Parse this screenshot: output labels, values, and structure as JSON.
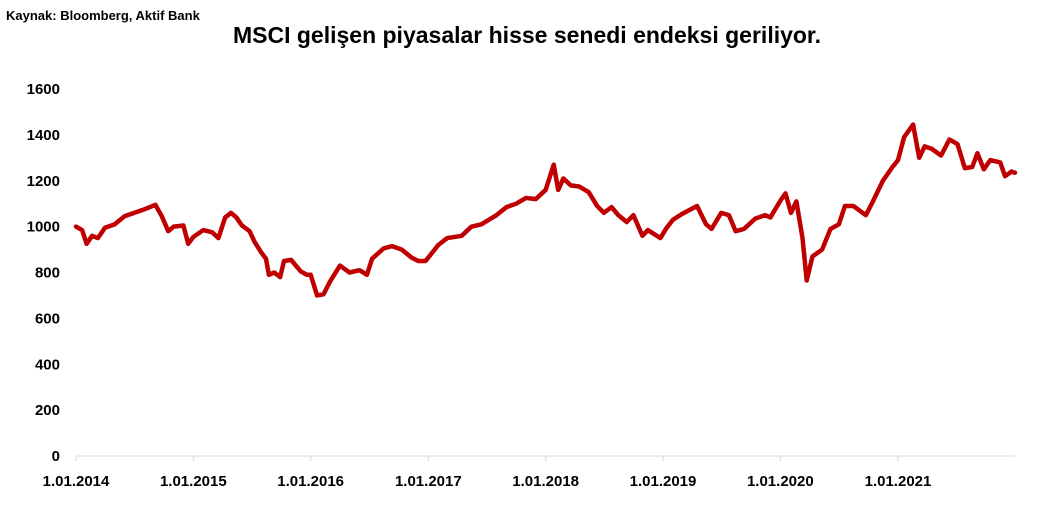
{
  "source": "Kaynak: Bloomberg, Aktif Bank",
  "title": "MSCI gelişen piyasalar hisse senedi endeksi geriliyor.",
  "colors": {
    "series": "#c00000",
    "axis": "#d9d9d9",
    "text": "#000000"
  },
  "chart_data": {
    "type": "line",
    "title": "MSCI gelişen piyasalar hisse senedi endeksi geriliyor.",
    "xlabel": "",
    "ylabel": "",
    "ylim": [
      0,
      1600
    ],
    "yticks": [
      0,
      200,
      400,
      600,
      800,
      1000,
      1200,
      1400,
      1600
    ],
    "xlim": [
      "2014-01-01",
      "2021-12-31"
    ],
    "xticks": [
      "1.01.2014",
      "1.01.2015",
      "1.01.2016",
      "1.01.2017",
      "1.01.2018",
      "1.01.2019",
      "1.01.2020",
      "1.01.2021"
    ],
    "grid": false,
    "legend": "none",
    "series": [
      {
        "points": [
          [
            "2014-01-01",
            1000
          ],
          [
            "2014-01-20",
            985
          ],
          [
            "2014-02-03",
            925
          ],
          [
            "2014-02-20",
            960
          ],
          [
            "2014-03-10",
            950
          ],
          [
            "2014-04-01",
            995
          ],
          [
            "2014-05-01",
            1010
          ],
          [
            "2014-06-01",
            1045
          ],
          [
            "2014-07-01",
            1060
          ],
          [
            "2014-08-01",
            1075
          ],
          [
            "2014-09-05",
            1095
          ],
          [
            "2014-09-25",
            1045
          ],
          [
            "2014-10-15",
            980
          ],
          [
            "2014-11-01",
            1000
          ],
          [
            "2014-12-01",
            1005
          ],
          [
            "2014-12-16",
            925
          ],
          [
            "2015-01-01",
            955
          ],
          [
            "2015-02-01",
            985
          ],
          [
            "2015-03-01",
            975
          ],
          [
            "2015-03-20",
            950
          ],
          [
            "2015-04-10",
            1040
          ],
          [
            "2015-04-28",
            1060
          ],
          [
            "2015-05-15",
            1040
          ],
          [
            "2015-06-01",
            1005
          ],
          [
            "2015-06-25",
            980
          ],
          [
            "2015-07-10",
            935
          ],
          [
            "2015-07-30",
            890
          ],
          [
            "2015-08-15",
            860
          ],
          [
            "2015-08-24",
            790
          ],
          [
            "2015-09-10",
            800
          ],
          [
            "2015-09-28",
            780
          ],
          [
            "2015-10-10",
            850
          ],
          [
            "2015-11-01",
            855
          ],
          [
            "2015-12-01",
            805
          ],
          [
            "2015-12-20",
            790
          ],
          [
            "2016-01-01",
            790
          ],
          [
            "2016-01-21",
            700
          ],
          [
            "2016-02-10",
            705
          ],
          [
            "2016-03-01",
            760
          ],
          [
            "2016-04-01",
            830
          ],
          [
            "2016-05-01",
            800
          ],
          [
            "2016-06-01",
            810
          ],
          [
            "2016-06-24",
            790
          ],
          [
            "2016-07-10",
            860
          ],
          [
            "2016-08-15",
            905
          ],
          [
            "2016-09-10",
            915
          ],
          [
            "2016-10-10",
            900
          ],
          [
            "2016-11-10",
            865
          ],
          [
            "2016-12-01",
            850
          ],
          [
            "2016-12-23",
            850
          ],
          [
            "2017-01-01",
            865
          ],
          [
            "2017-02-01",
            920
          ],
          [
            "2017-03-01",
            950
          ],
          [
            "2017-04-15",
            960
          ],
          [
            "2017-05-15",
            1000
          ],
          [
            "2017-06-15",
            1010
          ],
          [
            "2017-08-01",
            1050
          ],
          [
            "2017-09-01",
            1085
          ],
          [
            "2017-10-01",
            1100
          ],
          [
            "2017-11-01",
            1125
          ],
          [
            "2017-12-01",
            1120
          ],
          [
            "2018-01-01",
            1160
          ],
          [
            "2018-01-26",
            1270
          ],
          [
            "2018-02-09",
            1160
          ],
          [
            "2018-02-25",
            1210
          ],
          [
            "2018-03-20",
            1180
          ],
          [
            "2018-04-15",
            1175
          ],
          [
            "2018-05-15",
            1150
          ],
          [
            "2018-06-10",
            1090
          ],
          [
            "2018-07-01",
            1060
          ],
          [
            "2018-07-25",
            1085
          ],
          [
            "2018-08-15",
            1050
          ],
          [
            "2018-09-10",
            1020
          ],
          [
            "2018-10-01",
            1050
          ],
          [
            "2018-10-29",
            960
          ],
          [
            "2018-11-15",
            985
          ],
          [
            "2018-12-24",
            950
          ],
          [
            "2019-01-10",
            990
          ],
          [
            "2019-02-01",
            1030
          ],
          [
            "2019-03-01",
            1055
          ],
          [
            "2019-04-17",
            1090
          ],
          [
            "2019-05-15",
            1010
          ],
          [
            "2019-06-01",
            990
          ],
          [
            "2019-07-01",
            1060
          ],
          [
            "2019-07-25",
            1050
          ],
          [
            "2019-08-15",
            980
          ],
          [
            "2019-09-10",
            990
          ],
          [
            "2019-10-15",
            1035
          ],
          [
            "2019-11-15",
            1050
          ],
          [
            "2019-12-01",
            1040
          ],
          [
            "2020-01-02",
            1115
          ],
          [
            "2020-01-17",
            1145
          ],
          [
            "2020-02-03",
            1060
          ],
          [
            "2020-02-20",
            1110
          ],
          [
            "2020-03-10",
            950
          ],
          [
            "2020-03-23",
            765
          ],
          [
            "2020-04-10",
            870
          ],
          [
            "2020-05-10",
            900
          ],
          [
            "2020-06-05",
            990
          ],
          [
            "2020-07-01",
            1010
          ],
          [
            "2020-07-20",
            1090
          ],
          [
            "2020-08-15",
            1090
          ],
          [
            "2020-09-23",
            1050
          ],
          [
            "2020-10-15",
            1110
          ],
          [
            "2020-11-15",
            1200
          ],
          [
            "2020-12-15",
            1260
          ],
          [
            "2021-01-01",
            1290
          ],
          [
            "2021-01-20",
            1390
          ],
          [
            "2021-02-17",
            1445
          ],
          [
            "2021-03-08",
            1300
          ],
          [
            "2021-03-25",
            1350
          ],
          [
            "2021-04-15",
            1340
          ],
          [
            "2021-05-15",
            1310
          ],
          [
            "2021-06-10",
            1380
          ],
          [
            "2021-07-05",
            1360
          ],
          [
            "2021-07-28",
            1255
          ],
          [
            "2021-08-20",
            1260
          ],
          [
            "2021-09-05",
            1320
          ],
          [
            "2021-09-25",
            1250
          ],
          [
            "2021-10-15",
            1290
          ],
          [
            "2021-11-15",
            1280
          ],
          [
            "2021-11-30",
            1220
          ],
          [
            "2021-12-20",
            1240
          ],
          [
            "2021-12-31",
            1235
          ]
        ]
      }
    ]
  }
}
